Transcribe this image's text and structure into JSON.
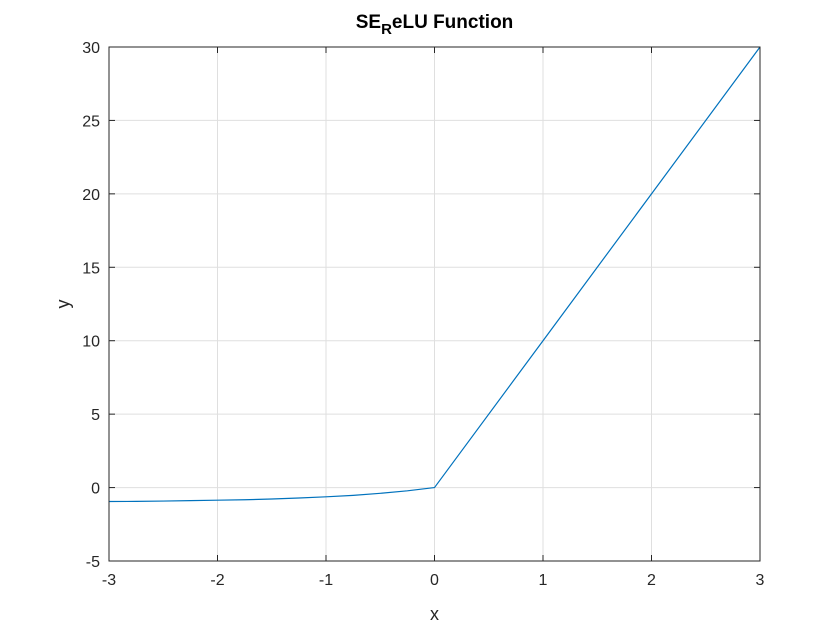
{
  "chart_data": {
    "type": "line",
    "title": {
      "prefix": "SE",
      "subscript": "R",
      "suffix": "eLU Function"
    },
    "xlabel": "x",
    "ylabel": "y",
    "xlim": [
      -3,
      3
    ],
    "ylim": [
      -5,
      30
    ],
    "xticks": [
      -3,
      -2,
      -1,
      0,
      1,
      2,
      3
    ],
    "yticks": [
      -5,
      0,
      5,
      10,
      15,
      20,
      25,
      30
    ],
    "grid": true,
    "series": [
      {
        "color": "#0072BD",
        "x": [
          -3,
          -2.75,
          -2.5,
          -2.25,
          -2,
          -1.75,
          -1.5,
          -1.25,
          -1,
          -0.75,
          -0.5,
          -0.25,
          0,
          1,
          2,
          3
        ],
        "y": [
          -0.95,
          -0.94,
          -0.92,
          -0.89,
          -0.86,
          -0.83,
          -0.78,
          -0.71,
          -0.63,
          -0.53,
          -0.39,
          -0.22,
          0,
          10,
          20,
          30
        ]
      }
    ]
  }
}
